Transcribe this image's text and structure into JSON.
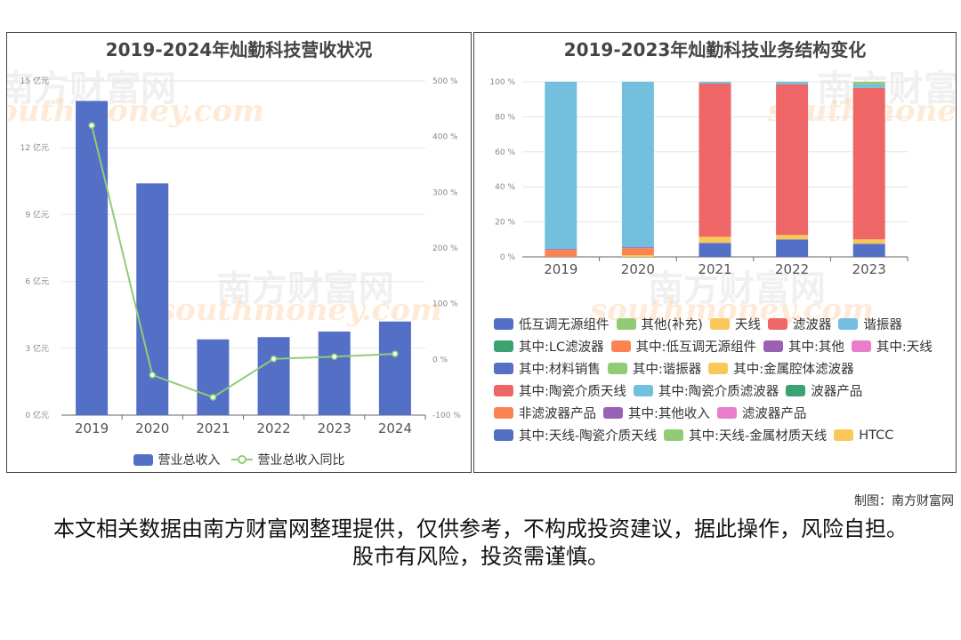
{
  "left_chart": {
    "title": "2019-2024年灿勤科技营收状况",
    "legend": {
      "bar": "营业总收入",
      "line": "营业总收入同比"
    }
  },
  "right_chart": {
    "title": "2019-2023年灿勤科技业务结构变化"
  },
  "watermark": {
    "cn": "南方财富网",
    "en": "southmoney.com"
  },
  "credit": "制图：南方财富网",
  "disclaimer": "本文相关数据由南方财富网整理提供，仅供参考，不构成投资建议，据此操作，风险自担。股市有风险，投资需谨慎。",
  "colors": {
    "bar": "#5470c6",
    "line": "#91cc75"
  },
  "chart_data": [
    {
      "type": "bar",
      "title": "2019-2024年灿勤科技营收状况",
      "categories": [
        "2019",
        "2020",
        "2021",
        "2022",
        "2023",
        "2024"
      ],
      "y_left": {
        "ticks": [
          "0 亿元",
          "3 亿元",
          "6 亿元",
          "9 亿元",
          "12 亿元",
          "15 亿元"
        ],
        "ylim": [
          0,
          15
        ]
      },
      "y_right": {
        "ticks": [
          "-100 %",
          "0 %",
          "100 %",
          "200 %",
          "300 %",
          "400 %",
          "500 %"
        ],
        "ylim": [
          -100,
          500
        ]
      },
      "series": [
        {
          "name": "营业总收入",
          "type": "bar",
          "axis": "left",
          "color": "#5470c6",
          "values": [
            14.1,
            10.4,
            3.4,
            3.5,
            3.75,
            4.2
          ]
        },
        {
          "name": "营业总收入同比",
          "type": "line",
          "axis": "right",
          "color": "#91cc75",
          "values": [
            420,
            -28,
            -68,
            1,
            5,
            10
          ]
        }
      ],
      "grid": true,
      "legend_position": "bottom"
    },
    {
      "type": "bar",
      "stacked": true,
      "title": "2019-2023年灿勤科技业务结构变化",
      "categories": [
        "2019",
        "2020",
        "2021",
        "2022",
        "2023"
      ],
      "y_ticks": [
        "0 %",
        "20 %",
        "40 %",
        "60 %",
        "80 %",
        "100 %"
      ],
      "ylim": [
        0,
        100
      ],
      "grid": true,
      "legend_position": "bottom",
      "legend": [
        {
          "name": "低互调无源组件",
          "color": "#5470c6"
        },
        {
          "name": "其他(补充)",
          "color": "#91cc75"
        },
        {
          "name": "天线",
          "color": "#fac858"
        },
        {
          "name": "滤波器",
          "color": "#ee6666"
        },
        {
          "name": "谐振器",
          "color": "#73c0de"
        },
        {
          "name": "其中:LC滤波器",
          "color": "#3ba272"
        },
        {
          "name": "其中:低互调无源组件",
          "color": "#fc8452"
        },
        {
          "name": "其中:其他",
          "color": "#9a60b4"
        },
        {
          "name": "其中:天线",
          "color": "#ea7ccc"
        },
        {
          "name": "其中:材料销售",
          "color": "#5470c6"
        },
        {
          "name": "其中:谐振器",
          "color": "#91cc75"
        },
        {
          "name": "其中:金属腔体滤波器",
          "color": "#fac858"
        },
        {
          "name": "其中:陶瓷介质天线",
          "color": "#ee6666"
        },
        {
          "name": "其中:陶瓷介质滤波器",
          "color": "#73c0de"
        },
        {
          "name": "波器产品",
          "color": "#3ba272"
        },
        {
          "name": "非滤波器产品",
          "color": "#fc8452"
        },
        {
          "name": "其中:其他收入",
          "color": "#9a60b4"
        },
        {
          "name": "滤波器产品",
          "color": "#ea7ccc"
        },
        {
          "name": "其中:天线-陶瓷介质天线",
          "color": "#5470c6"
        },
        {
          "name": "其中:天线-金属材质天线",
          "color": "#91cc75"
        },
        {
          "name": "HTCC",
          "color": "#fac858"
        }
      ],
      "stacks": [
        {
          "category": "2019",
          "segments": [
            {
              "series": "非滤波器产品",
              "color": "#fc8452",
              "value": 4
            },
            {
              "series": "其中:其他收入",
              "color": "#9a60b4",
              "value": 0.5
            },
            {
              "series": "其中:陶瓷介质滤波器",
              "color": "#73c0de",
              "value": 95.5
            }
          ]
        },
        {
          "category": "2020",
          "segments": [
            {
              "series": "其中:金属腔体滤波器",
              "color": "#fac858",
              "value": 1
            },
            {
              "series": "非滤波器产品",
              "color": "#fc8452",
              "value": 4
            },
            {
              "series": "其中:其他收入",
              "color": "#9a60b4",
              "value": 0.5
            },
            {
              "series": "其中:陶瓷介质滤波器",
              "color": "#73c0de",
              "value": 94.5
            }
          ]
        },
        {
          "category": "2021",
          "segments": [
            {
              "series": "低互调无源组件",
              "color": "#5470c6",
              "value": 8
            },
            {
              "series": "天线",
              "color": "#fac858",
              "value": 3.5
            },
            {
              "series": "滤波器",
              "color": "#ee6666",
              "value": 87.5
            },
            {
              "series": "谐振器",
              "color": "#73c0de",
              "value": 1
            }
          ]
        },
        {
          "category": "2022",
          "segments": [
            {
              "series": "低互调无源组件",
              "color": "#5470c6",
              "value": 10
            },
            {
              "series": "天线",
              "color": "#fac858",
              "value": 2.5
            },
            {
              "series": "滤波器",
              "color": "#ee6666",
              "value": 86
            },
            {
              "series": "谐振器",
              "color": "#73c0de",
              "value": 1.5
            }
          ]
        },
        {
          "category": "2023",
          "segments": [
            {
              "series": "低互调无源组件",
              "color": "#5470c6",
              "value": 7.5
            },
            {
              "series": "天线",
              "color": "#fac858",
              "value": 2.5
            },
            {
              "series": "滤波器",
              "color": "#ee6666",
              "value": 86.5
            },
            {
              "series": "谐振器",
              "color": "#73c0de",
              "value": 2
            },
            {
              "series": "其他(补充)",
              "color": "#91cc75",
              "value": 1.5
            }
          ]
        }
      ]
    }
  ]
}
